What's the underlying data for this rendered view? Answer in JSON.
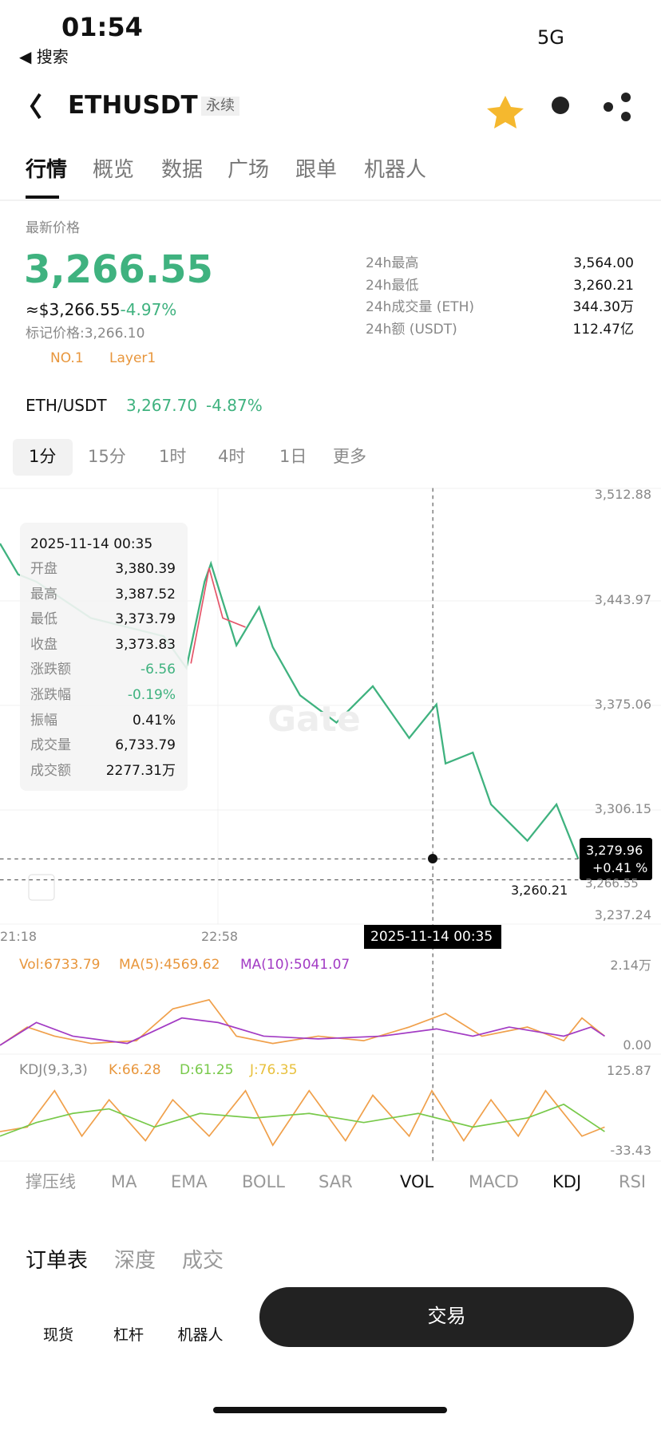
{
  "status_bar": {
    "time": "01:54",
    "back": "◀ 搜索",
    "network": "5G"
  },
  "header": {
    "symbol": "ETHUSDT",
    "contract": "永续"
  },
  "tabs": [
    "行情",
    "概览",
    "数据",
    "广场",
    "跟单",
    "机器人"
  ],
  "price": {
    "label": "最新价格",
    "last": "3,266.55",
    "usd": "≈$3,266.55",
    "change": "-4.97%",
    "mark": "标记价格:3,266.10",
    "rank": "NO.1",
    "tag": "Layer1"
  },
  "stats": [
    {
      "label": "24h最高",
      "value": "3,564.00"
    },
    {
      "label": "24h最低",
      "value": "3,260.21"
    },
    {
      "label": "24h成交量 (ETH)",
      "value": "344.30万"
    },
    {
      "label": "24h额 (USDT)",
      "value": "112.47亿"
    }
  ],
  "spot": {
    "pair": "ETH/USDT",
    "price": "3,267.70",
    "change": "-4.87%"
  },
  "intervals": [
    "1分",
    "15分",
    "1时",
    "4时",
    "1日",
    "更多"
  ],
  "chart": {
    "price_axis": [
      "3,512.88",
      "3,443.97",
      "3,375.06",
      "3,306.15",
      "3,237.24"
    ],
    "current": {
      "price": "3,279.96",
      "change": "+0.41 %"
    },
    "low": "3,260.21",
    "last": "3,266.55",
    "times": [
      "21:18",
      "22:58"
    ],
    "crosshair": "2025-11-14 00:35",
    "watermark": "Gate",
    "tooltip": {
      "date": "2025-11-14 00:35",
      "rows": [
        {
          "label": "开盘",
          "value": "3,380.39"
        },
        {
          "label": "最高",
          "value": "3,387.52"
        },
        {
          "label": "最低",
          "value": "3,373.79"
        },
        {
          "label": "收盘",
          "value": "3,373.83"
        },
        {
          "label": "涨跌额",
          "value": "-6.56"
        },
        {
          "label": "涨跌幅",
          "value": "-0.19%"
        },
        {
          "label": "振幅",
          "value": "0.41%"
        },
        {
          "label": "成交量",
          "value": "6,733.79"
        },
        {
          "label": "成交额",
          "value": "2277.31万"
        }
      ]
    },
    "vol": {
      "label": "Vol:6733.79",
      "ma5": "MA(5):4569.62",
      "ma10": "MA(10):5041.07",
      "axis": [
        "2.14万",
        "0.00"
      ]
    },
    "kdj": {
      "label": "KDJ(9,3,3)",
      "k": "K:66.28",
      "d": "D:61.25",
      "j": "J:76.35",
      "axis": [
        "125.87",
        "-33.43"
      ]
    }
  },
  "indicators": [
    "撑压线",
    "MA",
    "EMA",
    "BOLL",
    "SAR",
    "VOL",
    "MACD",
    "KDJ",
    "RSI"
  ],
  "order_tabs": [
    "订单表",
    "深度",
    "成交"
  ],
  "nav": [
    "现货",
    "杠杆",
    "机器人"
  ],
  "trade_button": "交易"
}
